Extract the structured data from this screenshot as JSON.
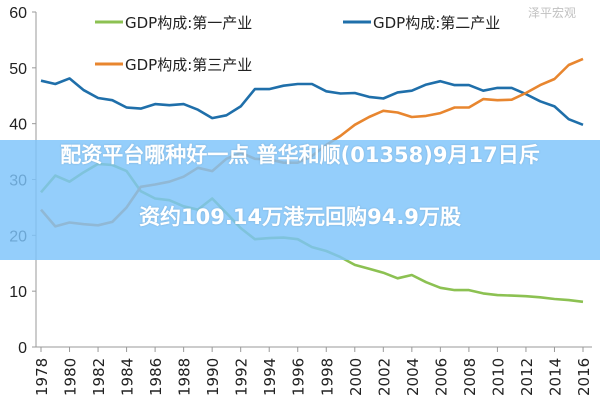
{
  "chart_data": {
    "type": "line",
    "title": "",
    "xlabel": "",
    "ylabel": "",
    "ylim": [
      0,
      60
    ],
    "yticks": [
      0,
      10,
      20,
      30,
      40,
      50,
      60
    ],
    "xticks": [
      "1978",
      "1980",
      "1982",
      "1984",
      "1986",
      "1988",
      "1990",
      "1992",
      "1994",
      "1996",
      "1998",
      "2000",
      "2002",
      "2004",
      "2006",
      "2008",
      "2010",
      "2012",
      "2014",
      "2016"
    ],
    "grid": false,
    "legend_position": "top",
    "x": [
      1978,
      1979,
      1980,
      1981,
      1982,
      1983,
      1984,
      1985,
      1986,
      1987,
      1988,
      1989,
      1990,
      1991,
      1992,
      1993,
      1994,
      1995,
      1996,
      1997,
      1998,
      1999,
      2000,
      2001,
      2002,
      2003,
      2004,
      2005,
      2006,
      2007,
      2008,
      2009,
      2010,
      2011,
      2012,
      2013,
      2014,
      2015,
      2016
    ],
    "series": [
      {
        "name": "GDP构成:第一产业",
        "color": "#8cc152",
        "values": [
          27.7,
          30.7,
          29.6,
          31.3,
          32.8,
          32.6,
          31.5,
          27.9,
          26.6,
          26.3,
          25.2,
          24.6,
          26.6,
          24.0,
          21.3,
          19.3,
          19.5,
          19.6,
          19.3,
          17.9,
          17.2,
          16.1,
          14.7,
          14.0,
          13.3,
          12.3,
          12.9,
          11.6,
          10.6,
          10.2,
          10.2,
          9.6,
          9.3,
          9.2,
          9.1,
          8.9,
          8.6,
          8.4,
          8.1
        ]
      },
      {
        "name": "GDP构成:第二产业",
        "color": "#1f6faa",
        "values": [
          47.7,
          47.1,
          48.1,
          46.0,
          44.6,
          44.2,
          42.9,
          42.7,
          43.5,
          43.3,
          43.5,
          42.5,
          41.0,
          41.5,
          43.1,
          46.2,
          46.2,
          46.8,
          47.1,
          47.1,
          45.8,
          45.4,
          45.5,
          44.8,
          44.5,
          45.6,
          45.9,
          47.0,
          47.6,
          46.9,
          46.9,
          45.9,
          46.4,
          46.4,
          45.3,
          44.0,
          43.1,
          40.8,
          39.8
        ]
      },
      {
        "name": "GDP构成:第三产业",
        "color": "#e8862f",
        "values": [
          24.6,
          21.6,
          22.3,
          22.0,
          21.8,
          22.4,
          25.0,
          28.7,
          29.1,
          29.6,
          30.5,
          32.1,
          31.5,
          33.7,
          34.8,
          33.7,
          33.6,
          33.0,
          33.0,
          34.2,
          36.2,
          37.8,
          39.8,
          41.2,
          42.3,
          42.0,
          41.2,
          41.4,
          41.9,
          42.9,
          42.9,
          44.4,
          44.2,
          44.3,
          45.5,
          46.9,
          48.0,
          50.5,
          51.6
        ]
      }
    ]
  },
  "banner": {
    "line1": "配资平台哪种好一点 普华和顺(01358)9月17日斥",
    "line2": "资约109.14万港元回购94.9万股"
  },
  "watermark": "泽平宏观"
}
